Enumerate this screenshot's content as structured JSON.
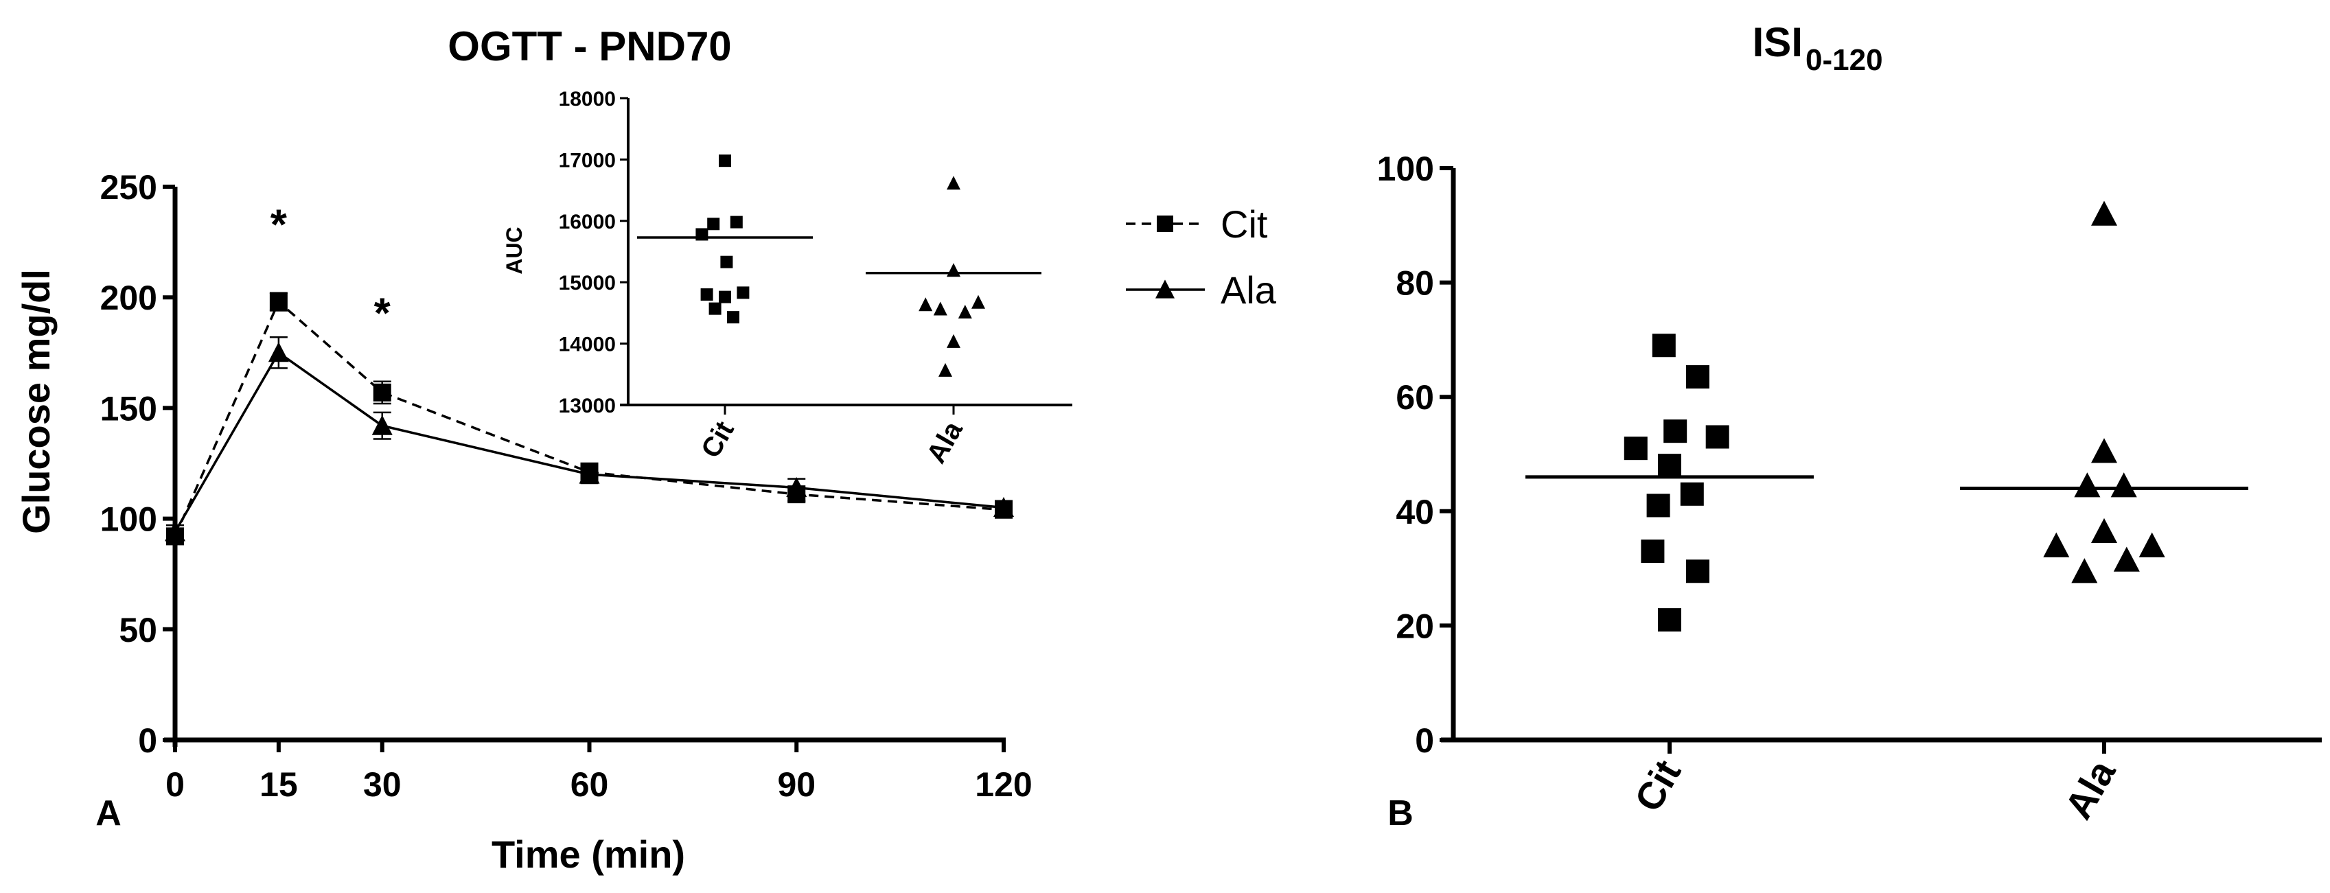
{
  "chart_data": [
    {
      "id": "A",
      "panel_label": "A",
      "type": "line",
      "title": "OGTT - PND70",
      "xlabel": "Time (min)",
      "ylabel": "Glucose mg/dl",
      "x": [
        0,
        15,
        30,
        60,
        90,
        120
      ],
      "xticks": [
        "0",
        "15",
        "30",
        "60",
        "90",
        "120"
      ],
      "yticks": [
        "0",
        "50",
        "100",
        "150",
        "200",
        "250"
      ],
      "xlim": [
        0,
        120
      ],
      "ylim": [
        0,
        250
      ],
      "series": [
        {
          "name": "Cit",
          "marker": "square",
          "line": "dashed",
          "values": [
            92,
            198,
            157,
            121,
            111,
            104
          ],
          "errors": [
            3,
            4,
            5,
            4,
            3,
            3
          ]
        },
        {
          "name": "Ala",
          "marker": "triangle",
          "line": "solid",
          "values": [
            94,
            175,
            142,
            120,
            114,
            105
          ],
          "errors": [
            3,
            7,
            6,
            4,
            4,
            3
          ]
        }
      ],
      "annotations": [
        {
          "text": "*",
          "x": 15,
          "y": 235
        },
        {
          "text": "*",
          "x": 30,
          "y": 195
        }
      ],
      "legend": {
        "placement": "right",
        "entries": [
          "Cit",
          "Ala"
        ]
      }
    },
    {
      "id": "A-inset",
      "type": "scatter",
      "title": "",
      "xlabel": "",
      "ylabel": "AUC",
      "categories": [
        "Cit",
        "Ala"
      ],
      "yticks": [
        "13000",
        "14000",
        "15000",
        "16000",
        "17000",
        "18000"
      ],
      "ylim": [
        13000,
        18000
      ],
      "groups": [
        {
          "name": "Cit",
          "marker": "square",
          "mean": 15730,
          "points": [
            {
              "v": 16980,
              "o": 0.0
            },
            {
              "v": 15950,
              "o": -0.35
            },
            {
              "v": 15980,
              "o": 0.35
            },
            {
              "v": 15780,
              "o": -0.7
            },
            {
              "v": 15330,
              "o": 0.05
            },
            {
              "v": 14800,
              "o": -0.55
            },
            {
              "v": 14760,
              "o": 0.0
            },
            {
              "v": 14830,
              "o": 0.55
            },
            {
              "v": 14570,
              "o": -0.3
            },
            {
              "v": 14430,
              "o": 0.25
            }
          ]
        },
        {
          "name": "Ala",
          "marker": "triangle",
          "mean": 15150,
          "points": [
            {
              "v": 16610,
              "o": 0.0
            },
            {
              "v": 15190,
              "o": 0.0
            },
            {
              "v": 14670,
              "o": 0.75
            },
            {
              "v": 14630,
              "o": -0.85
            },
            {
              "v": 14560,
              "o": -0.4
            },
            {
              "v": 14510,
              "o": 0.35
            },
            {
              "v": 14030,
              "o": 0.0
            },
            {
              "v": 13560,
              "o": -0.25
            }
          ]
        }
      ]
    },
    {
      "id": "B",
      "panel_label": "B",
      "type": "scatter",
      "title": "ISI",
      "title_subscript": "0-120",
      "xlabel": "",
      "ylabel": "",
      "categories": [
        "Cit",
        "Ala"
      ],
      "yticks": [
        "0",
        "20",
        "40",
        "60",
        "80",
        "100"
      ],
      "ylim": [
        0,
        100
      ],
      "groups": [
        {
          "name": "Cit",
          "marker": "square",
          "mean": 46,
          "points": [
            {
              "v": 69,
              "o": -0.1
            },
            {
              "v": 63.5,
              "o": 0.5
            },
            {
              "v": 54,
              "o": 0.1
            },
            {
              "v": 53,
              "o": 0.85
            },
            {
              "v": 51,
              "o": -0.6
            },
            {
              "v": 48,
              "o": 0.0
            },
            {
              "v": 43,
              "o": 0.4
            },
            {
              "v": 41,
              "o": -0.2
            },
            {
              "v": 33,
              "o": -0.3
            },
            {
              "v": 29.5,
              "o": 0.5
            },
            {
              "v": 21,
              "o": 0.0
            }
          ]
        },
        {
          "name": "Ala",
          "marker": "triangle",
          "mean": 44,
          "points": [
            {
              "v": 92,
              "o": 0.0
            },
            {
              "v": 50.5,
              "o": 0.0
            },
            {
              "v": 44.5,
              "o": -0.3
            },
            {
              "v": 44.5,
              "o": 0.35
            },
            {
              "v": 36.5,
              "o": 0.0
            },
            {
              "v": 34,
              "o": -0.85
            },
            {
              "v": 34,
              "o": 0.85
            },
            {
              "v": 31.5,
              "o": 0.4
            },
            {
              "v": 29.5,
              "o": -0.35
            }
          ]
        }
      ]
    }
  ]
}
